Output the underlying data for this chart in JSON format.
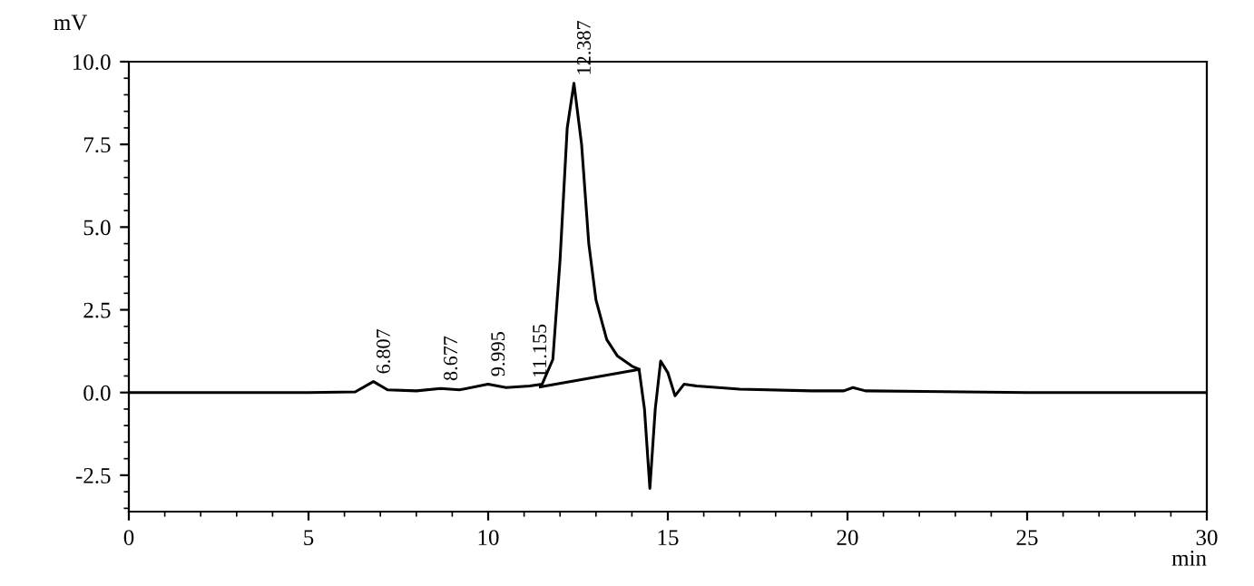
{
  "chart_data": {
    "type": "line",
    "xlabel": "min",
    "ylabel": "mV",
    "series": [
      {
        "color": "#000000",
        "x": [
          0,
          5,
          6.3,
          6.807,
          7.2,
          8,
          8.677,
          9.2,
          9.995,
          10.5,
          11.155,
          11.5,
          11.8,
          12.0,
          12.2,
          12.387,
          12.6,
          12.8,
          13.0,
          13.3,
          13.6,
          14.0,
          14.2,
          14.35,
          14.5,
          14.65,
          14.8,
          15.0,
          15.2,
          15.45,
          15.8,
          17,
          19,
          19.9,
          20.15,
          20.5,
          25,
          30
        ],
        "values": [
          0,
          0,
          0.02,
          0.33,
          0.08,
          0.05,
          0.12,
          0.08,
          0.25,
          0.15,
          0.2,
          0.25,
          1.0,
          4.0,
          8.0,
          9.35,
          7.5,
          4.5,
          2.8,
          1.6,
          1.1,
          0.8,
          0.7,
          -0.5,
          -2.9,
          -0.5,
          0.95,
          0.6,
          -0.1,
          0.25,
          0.2,
          0.1,
          0.05,
          0.05,
          0.15,
          0.05,
          0,
          0
        ]
      },
      {
        "color": "#000000",
        "x": [
          11.45,
          14.2
        ],
        "values": [
          0.17,
          0.7
        ]
      }
    ],
    "annotations": [
      {
        "text": "6.807",
        "x": 6.807,
        "y": 0.33
      },
      {
        "text": "8.677",
        "x": 8.677,
        "y": 0.12
      },
      {
        "text": "9.995",
        "x": 9.995,
        "y": 0.25
      },
      {
        "text": "11.155",
        "x": 11.155,
        "y": 0.2
      },
      {
        "text": "12.387",
        "x": 12.387,
        "y": 9.35
      }
    ],
    "xlim": [
      0,
      30
    ],
    "xticks": [
      0,
      5,
      10,
      15,
      20,
      25,
      30
    ],
    "ylim": [
      -3.6,
      10
    ],
    "yticks": [
      {
        "value": -2.5,
        "label": "-2.5"
      },
      {
        "value": 0,
        "label": "0.0"
      },
      {
        "value": 2.5,
        "label": "2.5"
      },
      {
        "value": 5,
        "label": "5.0"
      },
      {
        "value": 7.5,
        "label": "7.5"
      },
      {
        "value": 10,
        "label": "10.0"
      }
    ],
    "grid": false,
    "legend": false
  }
}
